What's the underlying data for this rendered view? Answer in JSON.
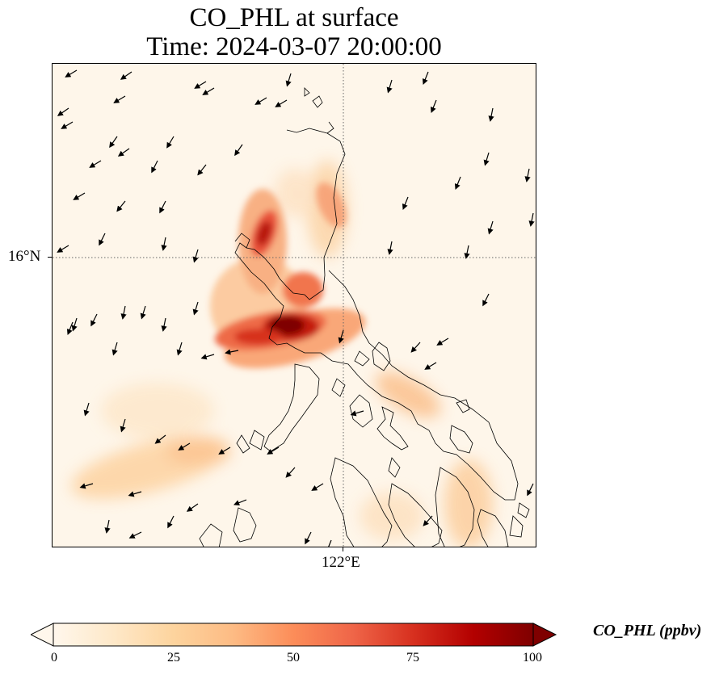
{
  "title": {
    "line1": "CO_PHL at surface",
    "line2": "Time: 2024-03-07 20:00:00"
  },
  "axes": {
    "lat_label": "16°N",
    "lon_label": "122°E"
  },
  "colorbar": {
    "label": "CO_PHL (ppbv)",
    "ticks": [
      "0",
      "25",
      "50",
      "75",
      "100"
    ],
    "range": [
      0,
      100
    ],
    "extend": "both",
    "colormap": "OrRd",
    "colors": [
      "#fff7ec",
      "#fee8c8",
      "#fdd49e",
      "#fdbb84",
      "#fc8d59",
      "#ef6548",
      "#d7301f",
      "#b30000",
      "#7f0000"
    ]
  },
  "map": {
    "background": "#fef6ea",
    "gridline_style": "dotted",
    "coastline_color": "#000000",
    "wind_arrow_color": "#000000"
  }
}
